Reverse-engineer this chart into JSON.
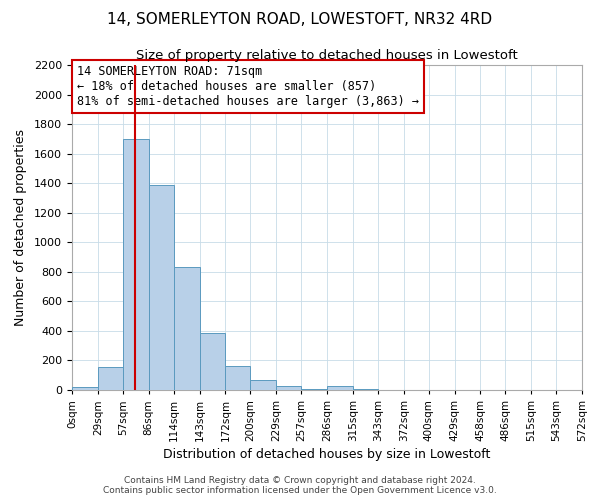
{
  "title": "14, SOMERLEYTON ROAD, LOWESTOFT, NR32 4RD",
  "subtitle": "Size of property relative to detached houses in Lowestoft",
  "xlabel": "Distribution of detached houses by size in Lowestoft",
  "ylabel": "Number of detached properties",
  "bin_edges": [
    0,
    29,
    57,
    86,
    114,
    143,
    172,
    200,
    229,
    257,
    286,
    315,
    343,
    372,
    400,
    429,
    458,
    486,
    515,
    543,
    572
  ],
  "bin_labels": [
    "0sqm",
    "29sqm",
    "57sqm",
    "86sqm",
    "114sqm",
    "143sqm",
    "172sqm",
    "200sqm",
    "229sqm",
    "257sqm",
    "286sqm",
    "315sqm",
    "343sqm",
    "372sqm",
    "400sqm",
    "429sqm",
    "458sqm",
    "486sqm",
    "515sqm",
    "543sqm",
    "572sqm"
  ],
  "counts": [
    20,
    155,
    1700,
    1390,
    830,
    385,
    160,
    65,
    30,
    5,
    25,
    5,
    0,
    0,
    0,
    0,
    0,
    0,
    0,
    0
  ],
  "bar_color": "#b8d0e8",
  "bar_edge_color": "#5a9abf",
  "vline_x": 71,
  "vline_color": "#cc0000",
  "ylim": [
    0,
    2200
  ],
  "yticks": [
    0,
    200,
    400,
    600,
    800,
    1000,
    1200,
    1400,
    1600,
    1800,
    2000,
    2200
  ],
  "annotation_line1": "14 SOMERLEYTON ROAD: 71sqm",
  "annotation_line2": "← 18% of detached houses are smaller (857)",
  "annotation_line3": "81% of semi-detached houses are larger (3,863) →",
  "annotation_box_color": "#ffffff",
  "annotation_box_edge": "#cc0000",
  "footer_line1": "Contains HM Land Registry data © Crown copyright and database right 2024.",
  "footer_line2": "Contains public sector information licensed under the Open Government Licence v3.0.",
  "background_color": "#ffffff",
  "grid_color": "#c8dce8"
}
